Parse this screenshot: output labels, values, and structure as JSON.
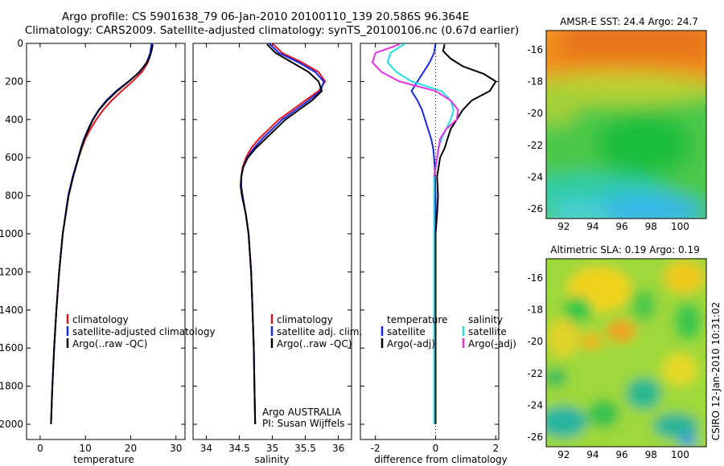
{
  "header": {
    "line1": "Argo profile: CS 5901638_79 06-Jan-2010 20100110_139 20.586S 96.364E",
    "line2": "Climatology: CARS2009. Satellite-adjusted climatology: synTS_20100106.nc (0.67d earlier)"
  },
  "side_label": "CSIRO 12-Jan-2010 10:31:02",
  "colors": {
    "red": "#e0141e",
    "blue": "#1a28e6",
    "black": "#000000",
    "cyan": "#22e0e6",
    "magenta": "#e632e0"
  },
  "chart_data": [
    {
      "id": "temperature",
      "type": "line",
      "xlabel": "temperature",
      "xlim": [
        -3,
        32
      ],
      "ylim": [
        2080,
        0
      ],
      "xticks": [
        "0",
        "10",
        "20",
        "30"
      ],
      "xtick_values": [
        0,
        10,
        20,
        30
      ],
      "yticks": [
        "0",
        "200",
        "400",
        "600",
        "800",
        "1000",
        "1200",
        "1400",
        "1600",
        "1800",
        "2000"
      ],
      "ytick_values": [
        0,
        200,
        400,
        600,
        800,
        1000,
        1200,
        1400,
        1600,
        1800,
        2000
      ],
      "legend": [
        "climatology",
        "satellite-adjusted climatology",
        "Argo(..raw -QC)"
      ],
      "series": [
        {
          "name": "climatology",
          "color": "red",
          "depth": [
            0,
            50,
            100,
            150,
            200,
            250,
            300,
            350,
            400,
            450,
            500,
            550,
            600,
            700,
            800,
            1000,
            1200,
            1400,
            1600,
            1800,
            2000
          ],
          "values": [
            24.6,
            24.4,
            23.8,
            22.5,
            20.4,
            18.0,
            15.8,
            13.9,
            12.4,
            11.1,
            10.0,
            9.2,
            8.5,
            7.2,
            6.2,
            5.0,
            4.2,
            3.6,
            3.1,
            2.7,
            2.4
          ]
        },
        {
          "name": "satellite-adjusted climatology",
          "color": "blue",
          "depth": [
            0,
            50,
            100,
            150,
            200,
            250,
            300,
            350,
            400,
            450,
            500,
            550,
            600,
            700,
            800,
            1000,
            1200,
            1400,
            1600,
            1800,
            2000
          ],
          "values": [
            24.6,
            24.3,
            23.5,
            22.0,
            19.5,
            16.8,
            14.6,
            12.9,
            11.6,
            10.6,
            9.7,
            9.0,
            8.4,
            7.2,
            6.2,
            5.0,
            4.2,
            3.6,
            3.1,
            2.7,
            2.4
          ]
        },
        {
          "name": "Argo(..raw -QC)",
          "color": "black",
          "depth": [
            5,
            40,
            80,
            120,
            160,
            200,
            250,
            300,
            350,
            400,
            450,
            500,
            550,
            600,
            700,
            800,
            1000,
            1200,
            1400,
            1600,
            1800,
            2000
          ],
          "values": [
            24.9,
            24.6,
            24.1,
            23.0,
            21.5,
            19.6,
            17.0,
            14.8,
            13.0,
            11.7,
            10.7,
            9.8,
            9.1,
            8.5,
            7.3,
            6.3,
            5.0,
            4.2,
            3.6,
            3.1,
            2.7,
            2.4
          ]
        }
      ]
    },
    {
      "id": "salinity",
      "type": "line",
      "xlabel": "salinity",
      "xlim": [
        33.8,
        36.2
      ],
      "ylim": [
        2080,
        0
      ],
      "xticks": [
        "34",
        "34.5",
        "35",
        "35.5",
        "36"
      ],
      "xtick_values": [
        34,
        34.5,
        35,
        35.5,
        36
      ],
      "legend": [
        "climatology",
        "satellite adj. clim.",
        "Argo(..raw -QC)"
      ],
      "footer": [
        "Argo AUSTRALIA",
        "PI: Susan Wijffels"
      ],
      "series": [
        {
          "name": "climatology",
          "color": "red",
          "depth": [
            0,
            50,
            100,
            150,
            200,
            250,
            300,
            350,
            400,
            450,
            500,
            550,
            600,
            650,
            700,
            750,
            800,
            900,
            1000,
            1200,
            1400,
            1600,
            1800,
            2000
          ],
          "values": [
            35.0,
            35.15,
            35.45,
            35.7,
            35.8,
            35.7,
            35.5,
            35.3,
            35.1,
            34.95,
            34.8,
            34.68,
            34.6,
            34.55,
            34.53,
            34.53,
            34.55,
            34.6,
            34.64,
            34.68,
            34.7,
            34.72,
            34.73,
            34.74
          ]
        },
        {
          "name": "satellite adj. clim.",
          "color": "blue",
          "depth": [
            0,
            50,
            100,
            150,
            200,
            250,
            300,
            350,
            400,
            450,
            500,
            550,
            600,
            650,
            700,
            750,
            800,
            900,
            1000,
            1200,
            1400,
            1600,
            1800,
            2000
          ],
          "values": [
            34.95,
            35.1,
            35.4,
            35.65,
            35.78,
            35.73,
            35.55,
            35.35,
            35.15,
            35.0,
            34.85,
            34.72,
            34.62,
            34.56,
            34.53,
            34.53,
            34.55,
            34.6,
            34.64,
            34.68,
            34.7,
            34.72,
            34.73,
            34.74
          ]
        },
        {
          "name": "Argo(..raw -QC)",
          "color": "black",
          "depth": [
            5,
            50,
            100,
            150,
            200,
            250,
            300,
            350,
            400,
            450,
            500,
            550,
            600,
            650,
            700,
            750,
            800,
            900,
            1000,
            1200,
            1400,
            1600,
            1800,
            2000
          ],
          "values": [
            34.92,
            35.05,
            35.3,
            35.55,
            35.7,
            35.75,
            35.6,
            35.4,
            35.2,
            35.05,
            34.9,
            34.75,
            34.63,
            34.56,
            34.53,
            34.52,
            34.54,
            34.6,
            34.64,
            34.68,
            34.7,
            34.72,
            34.73,
            34.74
          ]
        }
      ]
    },
    {
      "id": "difference",
      "type": "line",
      "xlabel": "difference from climatology",
      "xlim": [
        -2.5,
        2.1
      ],
      "ylim": [
        2080,
        0
      ],
      "xticks": [
        "-2",
        "0",
        "2"
      ],
      "xtick_values": [
        -2,
        0,
        2
      ],
      "legend_left_title": "temperature",
      "legend_left": [
        "satellite",
        "Argo(-adj)"
      ],
      "legend_right_title": "salinity",
      "legend_right": [
        "satellite",
        "Argo(-adj)"
      ],
      "series": [
        {
          "name": "temperature satellite",
          "color": "blue",
          "depth": [
            0,
            50,
            100,
            150,
            200,
            250,
            300,
            350,
            400,
            450,
            500,
            550,
            600,
            650,
            700,
            750,
            800,
            1000,
            1200,
            1400,
            1600,
            1800,
            2000
          ],
          "values": [
            0.0,
            -0.05,
            -0.2,
            -0.4,
            -0.6,
            -0.8,
            -0.6,
            -0.45,
            -0.35,
            -0.25,
            -0.15,
            -0.08,
            -0.05,
            -0.03,
            -0.02,
            -0.01,
            0.0,
            0.0,
            0.0,
            0.0,
            0.0,
            0.0,
            0.0
          ]
        },
        {
          "name": "temperature Argo(-adj)",
          "color": "black",
          "depth": [
            5,
            40,
            80,
            120,
            160,
            200,
            250,
            300,
            350,
            400,
            450,
            500,
            550,
            600,
            650,
            700,
            800,
            900,
            1000,
            1200,
            1400,
            1600,
            1800,
            2000
          ],
          "values": [
            0.3,
            0.25,
            0.5,
            0.9,
            1.6,
            2.0,
            1.8,
            1.2,
            0.9,
            0.7,
            0.5,
            0.4,
            0.3,
            0.15,
            0.1,
            0.05,
            0.08,
            0.05,
            0.0,
            0.0,
            0.0,
            0.0,
            0.0,
            0.0
          ]
        },
        {
          "name": "salinity satellite",
          "color": "cyan",
          "depth": [
            0,
            50,
            100,
            150,
            200,
            250,
            300,
            350,
            400,
            450,
            500,
            550,
            600,
            650,
            700,
            800,
            1000,
            1200,
            1400,
            1600,
            1800,
            2000
          ],
          "values": [
            -1.0,
            -1.5,
            -1.6,
            -1.3,
            -0.8,
            0.2,
            0.5,
            0.6,
            0.5,
            0.35,
            0.2,
            0.1,
            0.05,
            0.0,
            -0.05,
            -0.05,
            -0.05,
            -0.05,
            -0.05,
            -0.05,
            -0.05,
            -0.05
          ]
        },
        {
          "name": "salinity Argo(-adj)",
          "color": "magenta",
          "depth": [
            5,
            50,
            100,
            150,
            200,
            250,
            300,
            350,
            400,
            450,
            500,
            550,
            600,
            650,
            700
          ],
          "values": [
            -1.2,
            -2.0,
            -2.1,
            -1.8,
            -1.2,
            0.0,
            0.5,
            0.75,
            0.7,
            0.35,
            0.15,
            0.1,
            0.05,
            0.0,
            -0.05
          ]
        }
      ]
    },
    {
      "id": "sst_map",
      "type": "heatmap",
      "title": "AMSR-E SST: 24.4 Argo: 24.7",
      "xlim": [
        90.8,
        101.8
      ],
      "ylim": [
        -26.6,
        -14.8
      ],
      "xticks": [
        "92",
        "94",
        "96",
        "98",
        "100"
      ],
      "xtick_values": [
        92,
        94,
        96,
        98,
        100
      ],
      "yticks": [
        "-16",
        "-18",
        "-20",
        "-22",
        "-24",
        "-26"
      ],
      "ytick_values": [
        -16,
        -18,
        -20,
        -22,
        -24,
        -26
      ],
      "marker": {
        "lon": 96.364,
        "lat": -20.586
      }
    },
    {
      "id": "sla_map",
      "type": "heatmap",
      "title": "Altimetric SLA: 0.19 Argo: 0.19",
      "xlim": [
        90.8,
        101.8
      ],
      "ylim": [
        -26.6,
        -14.8
      ],
      "xticks": [
        "92",
        "94",
        "96",
        "98",
        "100"
      ],
      "xtick_values": [
        92,
        94,
        96,
        98,
        100
      ],
      "yticks": [
        "-16",
        "-18",
        "-20",
        "-22",
        "-24",
        "-26"
      ],
      "ytick_values": [
        -16,
        -18,
        -20,
        -22,
        -24,
        -26
      ],
      "marker": {
        "lon": 96.364,
        "lat": -20.586
      }
    }
  ]
}
